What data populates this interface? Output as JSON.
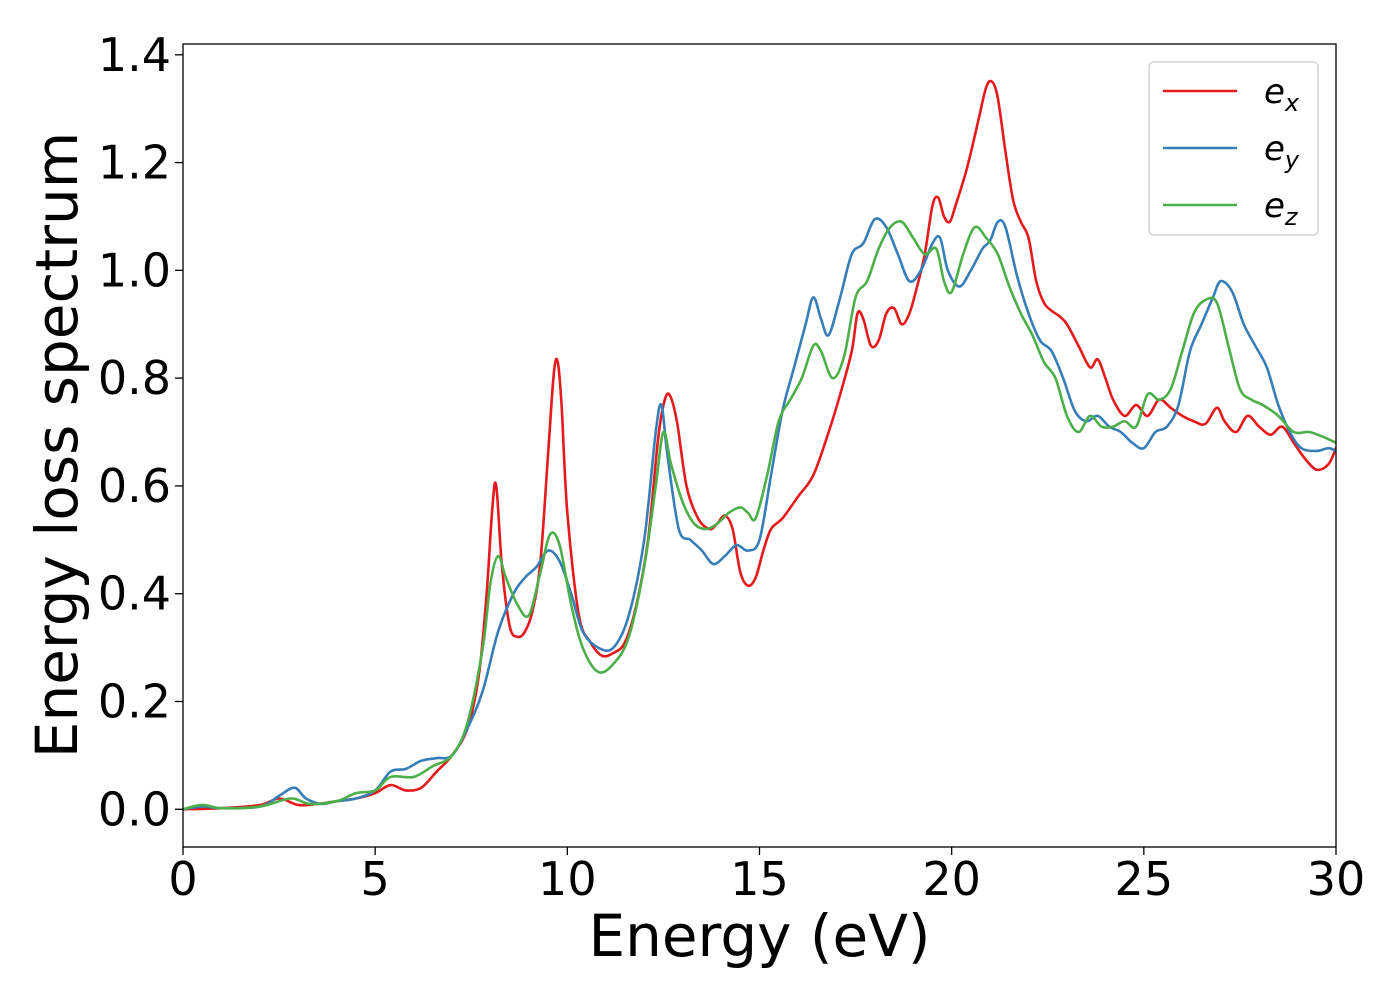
{
  "chart_data": {
    "type": "line",
    "title": "",
    "xlabel": "Energy (eV)",
    "ylabel": "Energy loss spectrum",
    "xlim": [
      0,
      30
    ],
    "ylim": [
      -0.07,
      1.42
    ],
    "xticks": [
      0,
      5,
      10,
      15,
      20,
      25,
      30
    ],
    "xtick_labels": [
      "0",
      "5",
      "10",
      "15",
      "20",
      "25",
      "30"
    ],
    "yticks": [
      0.0,
      0.2,
      0.4,
      0.6,
      0.8,
      1.0,
      1.2,
      1.4
    ],
    "ytick_labels": [
      "0.0",
      "0.2",
      "0.4",
      "0.6",
      "0.8",
      "1.0",
      "1.2",
      "1.4"
    ],
    "grid": false,
    "legend_position": "top-right",
    "series": [
      {
        "name": "e",
        "subscript": "x",
        "color": "#e41a1c",
        "x": [
          0,
          1,
          2,
          2.5,
          3,
          3.5,
          4,
          4.5,
          5,
          5.4,
          5.8,
          6.2,
          6.6,
          7,
          7.4,
          7.7,
          7.9,
          8.05,
          8.15,
          8.3,
          8.5,
          8.7,
          8.9,
          9.1,
          9.3,
          9.5,
          9.65,
          9.75,
          9.85,
          10,
          10.3,
          10.6,
          10.9,
          11.2,
          11.5,
          11.8,
          12.1,
          12.35,
          12.5,
          12.65,
          12.85,
          13.1,
          13.4,
          13.7,
          13.9,
          14.1,
          14.3,
          14.5,
          14.7,
          14.9,
          15.1,
          15.3,
          15.6,
          16,
          16.4,
          16.8,
          17.1,
          17.4,
          17.55,
          17.7,
          17.9,
          18.1,
          18.3,
          18.5,
          18.7,
          18.9,
          19.1,
          19.3,
          19.5,
          19.65,
          19.8,
          19.95,
          20.1,
          20.4,
          20.7,
          20.9,
          21.05,
          21.2,
          21.4,
          21.6,
          21.8,
          22.0,
          22.2,
          22.4,
          22.6,
          22.8,
          23.0,
          23.3,
          23.6,
          23.8,
          24.0,
          24.2,
          24.5,
          24.8,
          25.1,
          25.4,
          25.7,
          26.0,
          26.3,
          26.6,
          26.9,
          27.1,
          27.4,
          27.7,
          28.0,
          28.3,
          28.6,
          28.9,
          29.2,
          29.5,
          29.8,
          30
        ],
        "y": [
          0.0,
          0.002,
          0.008,
          0.02,
          0.008,
          0.01,
          0.015,
          0.02,
          0.03,
          0.045,
          0.035,
          0.04,
          0.07,
          0.1,
          0.15,
          0.25,
          0.4,
          0.56,
          0.6,
          0.45,
          0.34,
          0.32,
          0.33,
          0.37,
          0.46,
          0.66,
          0.81,
          0.83,
          0.75,
          0.55,
          0.36,
          0.31,
          0.285,
          0.29,
          0.31,
          0.38,
          0.5,
          0.68,
          0.75,
          0.77,
          0.72,
          0.6,
          0.54,
          0.52,
          0.53,
          0.545,
          0.52,
          0.44,
          0.415,
          0.43,
          0.48,
          0.52,
          0.54,
          0.58,
          0.62,
          0.7,
          0.77,
          0.85,
          0.92,
          0.91,
          0.86,
          0.87,
          0.92,
          0.93,
          0.9,
          0.92,
          0.97,
          1.03,
          1.12,
          1.135,
          1.1,
          1.09,
          1.12,
          1.19,
          1.28,
          1.34,
          1.35,
          1.32,
          1.22,
          1.13,
          1.09,
          1.06,
          0.98,
          0.94,
          0.925,
          0.915,
          0.9,
          0.86,
          0.82,
          0.835,
          0.8,
          0.76,
          0.73,
          0.75,
          0.73,
          0.76,
          0.745,
          0.73,
          0.72,
          0.715,
          0.745,
          0.72,
          0.7,
          0.73,
          0.71,
          0.695,
          0.71,
          0.68,
          0.65,
          0.63,
          0.64,
          0.67
        ]
      },
      {
        "name": "e",
        "subscript": "y",
        "color": "#377eb8",
        "x": [
          0,
          0.5,
          1,
          2,
          2.5,
          2.9,
          3.2,
          3.6,
          4,
          4.5,
          5,
          5.4,
          5.8,
          6.2,
          6.6,
          7,
          7.4,
          7.8,
          8.2,
          8.6,
          8.9,
          9.2,
          9.5,
          9.8,
          10.1,
          10.4,
          10.8,
          11.2,
          11.6,
          12.0,
          12.3,
          12.45,
          12.6,
          12.9,
          13.2,
          13.5,
          13.8,
          14.1,
          14.4,
          14.7,
          15.0,
          15.3,
          15.6,
          15.9,
          16.2,
          16.4,
          16.6,
          16.8,
          17.1,
          17.4,
          17.7,
          18.0,
          18.3,
          18.6,
          18.9,
          19.2,
          19.5,
          19.7,
          19.9,
          20.2,
          20.5,
          20.8,
          21.0,
          21.2,
          21.4,
          21.7,
          22.0,
          22.3,
          22.6,
          22.9,
          23.2,
          23.5,
          23.8,
          24.1,
          24.4,
          24.7,
          25.0,
          25.3,
          25.6,
          25.9,
          26.2,
          26.5,
          26.8,
          27.0,
          27.3,
          27.6,
          27.9,
          28.2,
          28.5,
          28.8,
          29.1,
          29.5,
          29.8,
          30
        ],
        "y": [
          0.0,
          0.005,
          0.002,
          0.005,
          0.025,
          0.04,
          0.02,
          0.01,
          0.015,
          0.02,
          0.035,
          0.07,
          0.075,
          0.09,
          0.095,
          0.1,
          0.15,
          0.22,
          0.33,
          0.4,
          0.43,
          0.45,
          0.48,
          0.46,
          0.4,
          0.33,
          0.3,
          0.3,
          0.36,
          0.5,
          0.7,
          0.75,
          0.66,
          0.52,
          0.5,
          0.48,
          0.455,
          0.47,
          0.49,
          0.48,
          0.5,
          0.62,
          0.74,
          0.82,
          0.9,
          0.95,
          0.91,
          0.88,
          0.95,
          1.03,
          1.05,
          1.095,
          1.08,
          1.03,
          0.98,
          1.0,
          1.05,
          1.06,
          1.0,
          0.97,
          1.0,
          1.04,
          1.055,
          1.09,
          1.08,
          0.99,
          0.92,
          0.87,
          0.85,
          0.8,
          0.74,
          0.72,
          0.73,
          0.71,
          0.7,
          0.68,
          0.67,
          0.7,
          0.71,
          0.75,
          0.85,
          0.9,
          0.95,
          0.98,
          0.96,
          0.9,
          0.86,
          0.82,
          0.75,
          0.7,
          0.67,
          0.665,
          0.67,
          0.665
        ]
      },
      {
        "name": "e",
        "subscript": "z",
        "color": "#4daf4a",
        "x": [
          0,
          0.5,
          1,
          2,
          2.8,
          3.3,
          4,
          4.5,
          5,
          5.4,
          6,
          6.5,
          7,
          7.4,
          7.8,
          8.0,
          8.2,
          8.4,
          8.7,
          9.0,
          9.3,
          9.55,
          9.8,
          10.1,
          10.4,
          10.8,
          11.2,
          11.6,
          12.0,
          12.3,
          12.5,
          12.7,
          13.0,
          13.3,
          13.6,
          13.9,
          14.2,
          14.5,
          14.7,
          14.9,
          15.2,
          15.5,
          15.8,
          16.1,
          16.4,
          16.6,
          16.9,
          17.2,
          17.5,
          17.8,
          18.1,
          18.4,
          18.7,
          19.0,
          19.3,
          19.6,
          19.8,
          20.0,
          20.3,
          20.6,
          20.9,
          21.2,
          21.5,
          21.8,
          22.1,
          22.4,
          22.7,
          23.0,
          23.3,
          23.6,
          23.9,
          24.2,
          24.5,
          24.8,
          25.1,
          25.4,
          25.7,
          26.0,
          26.3,
          26.6,
          26.9,
          27.2,
          27.5,
          27.8,
          28.1,
          28.5,
          28.9,
          29.3,
          29.7,
          30
        ],
        "y": [
          0.0,
          0.008,
          0.002,
          0.005,
          0.02,
          0.01,
          0.015,
          0.03,
          0.035,
          0.06,
          0.06,
          0.08,
          0.1,
          0.16,
          0.3,
          0.42,
          0.47,
          0.43,
          0.38,
          0.36,
          0.44,
          0.51,
          0.49,
          0.38,
          0.3,
          0.255,
          0.27,
          0.32,
          0.45,
          0.6,
          0.7,
          0.64,
          0.57,
          0.53,
          0.52,
          0.53,
          0.55,
          0.56,
          0.55,
          0.54,
          0.62,
          0.72,
          0.76,
          0.8,
          0.86,
          0.85,
          0.8,
          0.84,
          0.95,
          0.98,
          1.04,
          1.08,
          1.09,
          1.06,
          1.03,
          1.04,
          0.98,
          0.96,
          1.03,
          1.08,
          1.06,
          1.03,
          0.97,
          0.92,
          0.88,
          0.83,
          0.8,
          0.73,
          0.7,
          0.73,
          0.71,
          0.71,
          0.72,
          0.71,
          0.77,
          0.76,
          0.78,
          0.85,
          0.92,
          0.945,
          0.94,
          0.86,
          0.78,
          0.76,
          0.75,
          0.73,
          0.7,
          0.7,
          0.69,
          0.68
        ]
      }
    ]
  }
}
